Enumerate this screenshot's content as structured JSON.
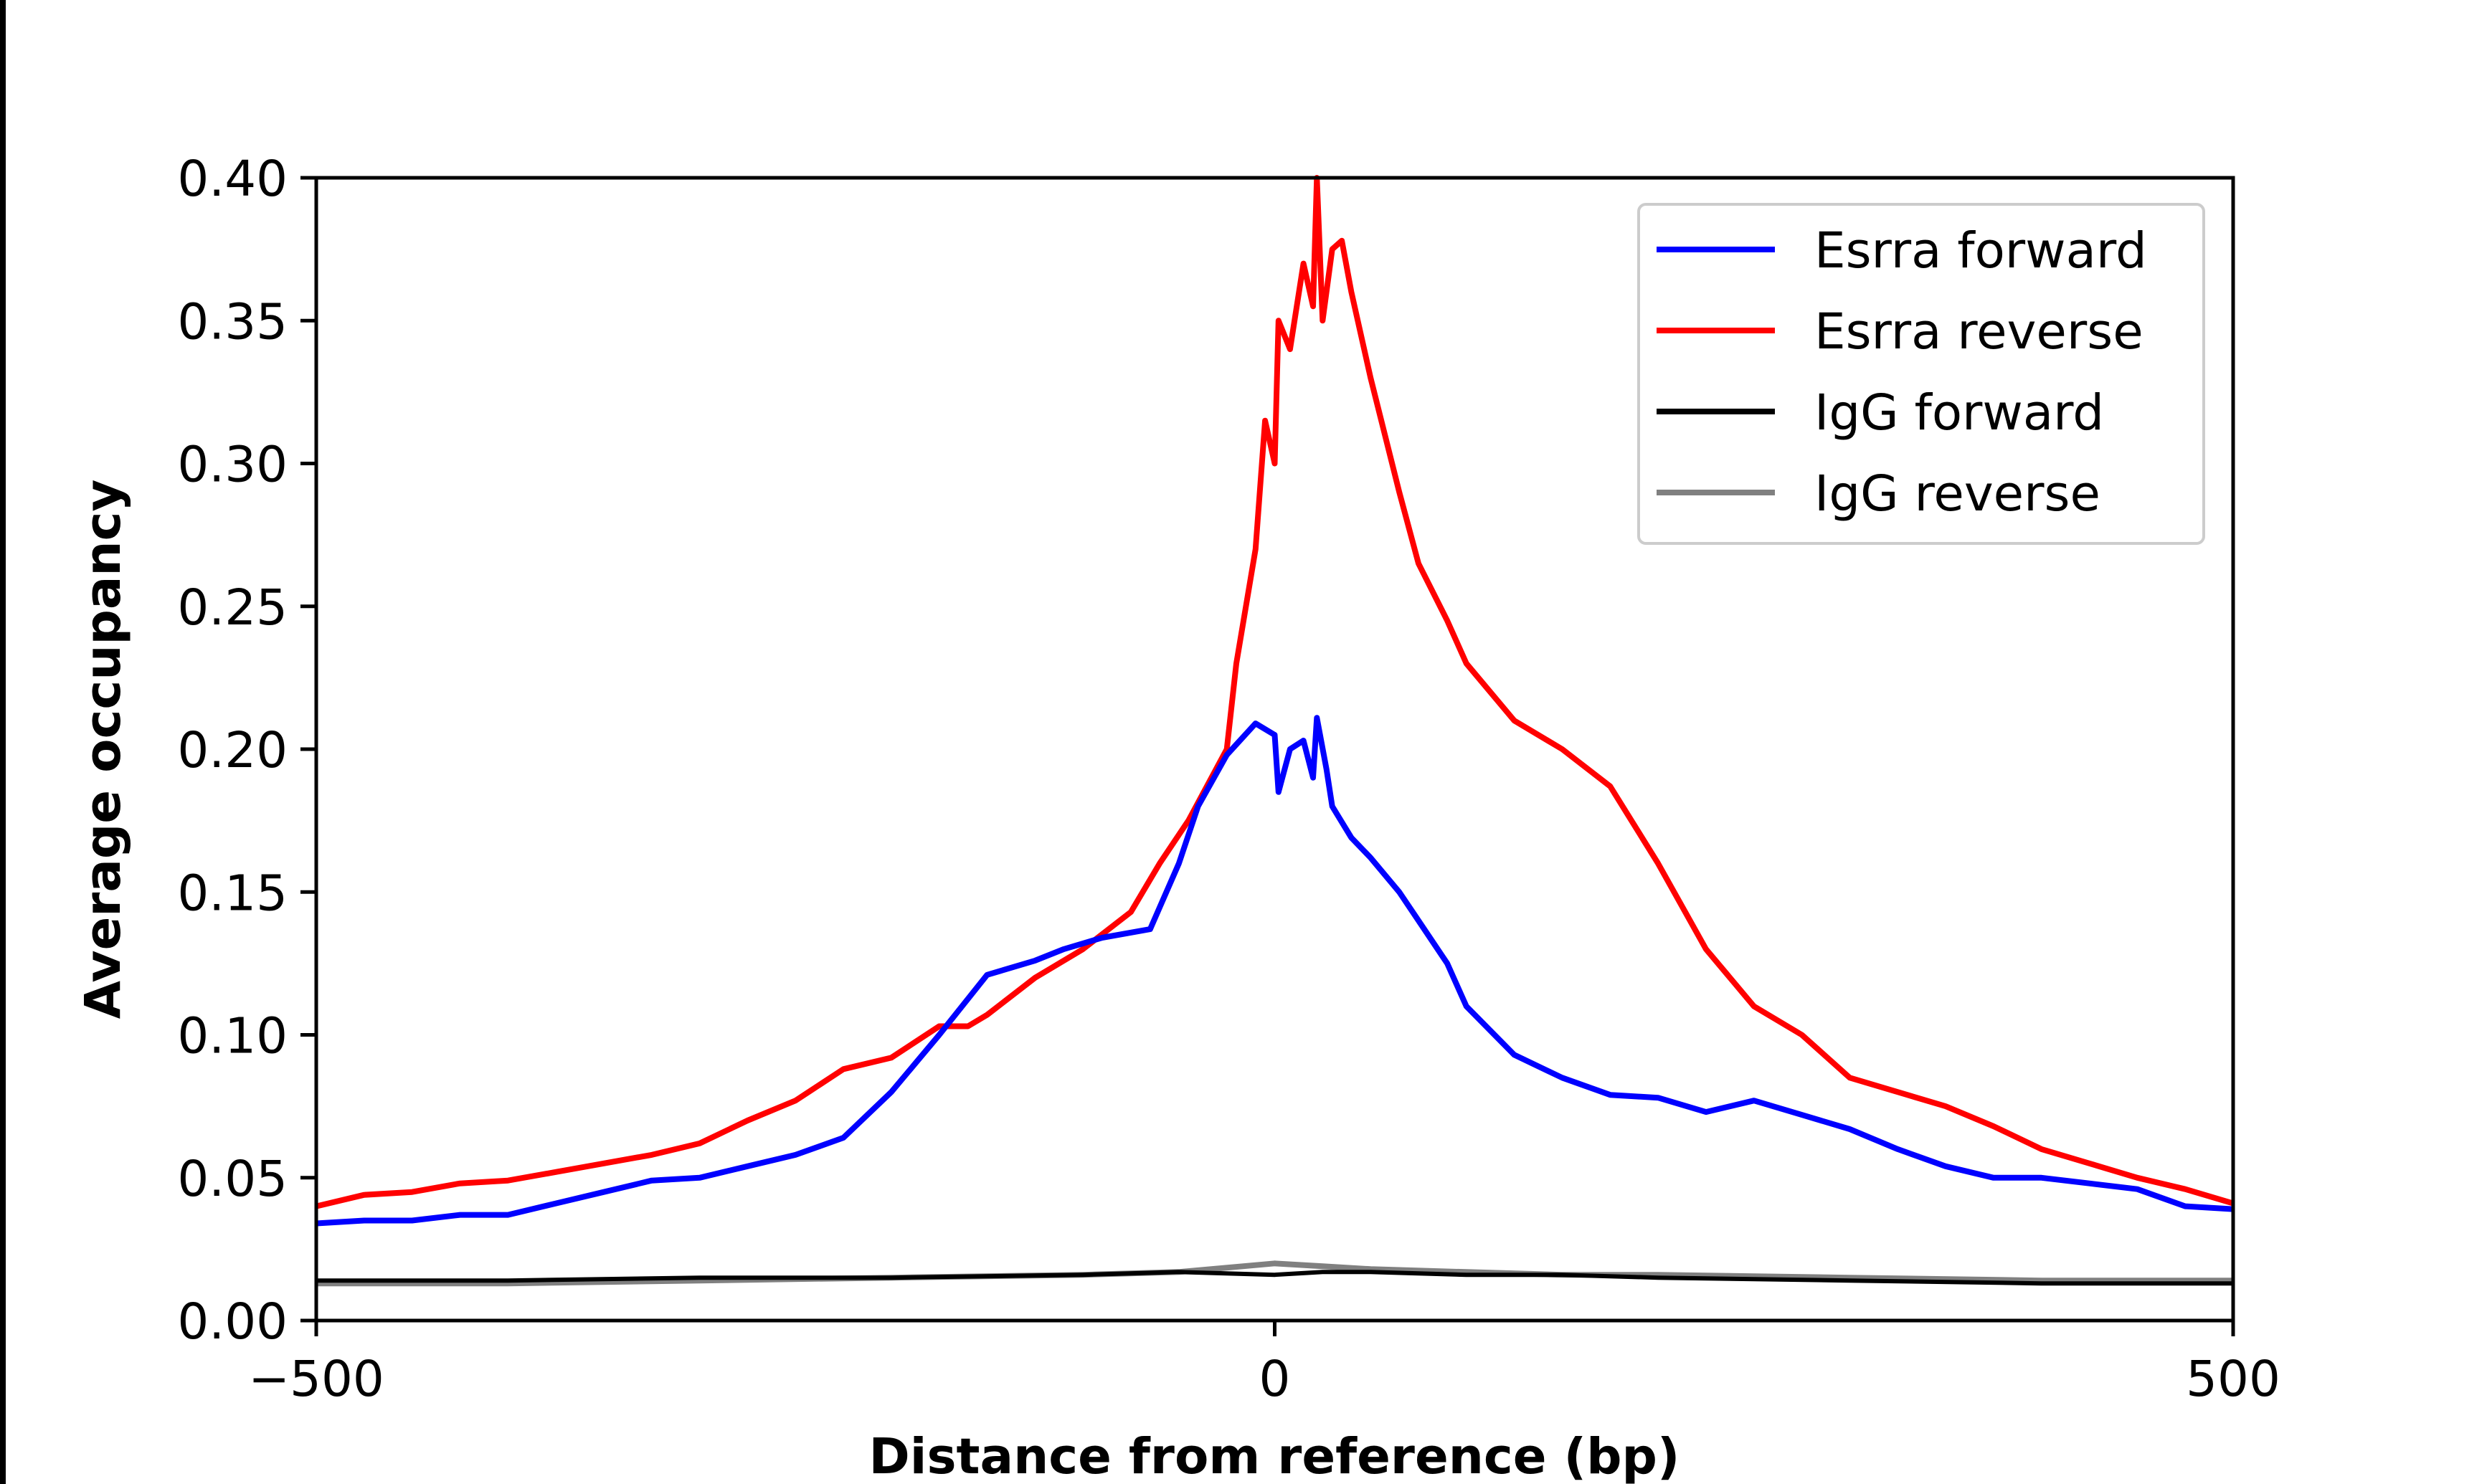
{
  "chart_data": {
    "type": "line",
    "title": "",
    "xlabel": "Distance from reference (bp)",
    "ylabel": "Average occupancy",
    "xlim": [
      -500,
      500
    ],
    "ylim": [
      0,
      0.4
    ],
    "xticks": [
      -500,
      0,
      500
    ],
    "xtick_labels": [
      "−500",
      "0",
      "500"
    ],
    "yticks": [
      0,
      0.05,
      0.1,
      0.15,
      0.2,
      0.25,
      0.3,
      0.35,
      0.4
    ],
    "ytick_labels": [
      "0.00",
      "0.05",
      "0.10",
      "0.15",
      "0.20",
      "0.25",
      "0.30",
      "0.35",
      "0.40"
    ],
    "grid": false,
    "legend_position": "top-right",
    "series": [
      {
        "name": "Esrra forward",
        "color": "#0000ff",
        "points": [
          [
            -500,
            0.034
          ],
          [
            -475,
            0.035
          ],
          [
            -450,
            0.035
          ],
          [
            -425,
            0.037
          ],
          [
            -400,
            0.037
          ],
          [
            -375,
            0.041
          ],
          [
            -350,
            0.045
          ],
          [
            -325,
            0.049
          ],
          [
            -300,
            0.05
          ],
          [
            -275,
            0.054
          ],
          [
            -250,
            0.058
          ],
          [
            -225,
            0.064
          ],
          [
            -200,
            0.08
          ],
          [
            -175,
            0.1
          ],
          [
            -150,
            0.121
          ],
          [
            -125,
            0.126
          ],
          [
            -110,
            0.13
          ],
          [
            -90,
            0.134
          ],
          [
            -65,
            0.137
          ],
          [
            -50,
            0.16
          ],
          [
            -40,
            0.18
          ],
          [
            -25,
            0.198
          ],
          [
            -10,
            0.209
          ],
          [
            0,
            0.205
          ],
          [
            2,
            0.185
          ],
          [
            8,
            0.2
          ],
          [
            15,
            0.203
          ],
          [
            20,
            0.19
          ],
          [
            22,
            0.211
          ],
          [
            27,
            0.193
          ],
          [
            30,
            0.18
          ],
          [
            40,
            0.169
          ],
          [
            50,
            0.162
          ],
          [
            65,
            0.15
          ],
          [
            75,
            0.14
          ],
          [
            90,
            0.125
          ],
          [
            100,
            0.11
          ],
          [
            125,
            0.093
          ],
          [
            150,
            0.085
          ],
          [
            175,
            0.079
          ],
          [
            200,
            0.078
          ],
          [
            225,
            0.073
          ],
          [
            250,
            0.077
          ],
          [
            275,
            0.072
          ],
          [
            300,
            0.067
          ],
          [
            325,
            0.06
          ],
          [
            350,
            0.054
          ],
          [
            375,
            0.05
          ],
          [
            400,
            0.05
          ],
          [
            425,
            0.048
          ],
          [
            450,
            0.046
          ],
          [
            475,
            0.04
          ],
          [
            500,
            0.039
          ]
        ]
      },
      {
        "name": "Esrra reverse",
        "color": "#ff0000",
        "points": [
          [
            -500,
            0.04
          ],
          [
            -475,
            0.044
          ],
          [
            -450,
            0.045
          ],
          [
            -425,
            0.048
          ],
          [
            -400,
            0.049
          ],
          [
            -375,
            0.052
          ],
          [
            -350,
            0.055
          ],
          [
            -325,
            0.058
          ],
          [
            -300,
            0.062
          ],
          [
            -275,
            0.07
          ],
          [
            -250,
            0.077
          ],
          [
            -225,
            0.088
          ],
          [
            -200,
            0.092
          ],
          [
            -175,
            0.103
          ],
          [
            -160,
            0.103
          ],
          [
            -150,
            0.107
          ],
          [
            -125,
            0.12
          ],
          [
            -100,
            0.13
          ],
          [
            -75,
            0.143
          ],
          [
            -60,
            0.16
          ],
          [
            -45,
            0.175
          ],
          [
            -25,
            0.2
          ],
          [
            -20,
            0.23
          ],
          [
            -10,
            0.27
          ],
          [
            -5,
            0.315
          ],
          [
            0,
            0.3
          ],
          [
            2,
            0.35
          ],
          [
            8,
            0.34
          ],
          [
            15,
            0.37
          ],
          [
            20,
            0.355
          ],
          [
            22,
            0.4
          ],
          [
            25,
            0.35
          ],
          [
            30,
            0.375
          ],
          [
            35,
            0.378
          ],
          [
            40,
            0.36
          ],
          [
            50,
            0.33
          ],
          [
            65,
            0.29
          ],
          [
            75,
            0.265
          ],
          [
            90,
            0.245
          ],
          [
            100,
            0.23
          ],
          [
            125,
            0.21
          ],
          [
            150,
            0.2
          ],
          [
            175,
            0.187
          ],
          [
            200,
            0.16
          ],
          [
            225,
            0.13
          ],
          [
            250,
            0.11
          ],
          [
            275,
            0.1
          ],
          [
            300,
            0.085
          ],
          [
            325,
            0.08
          ],
          [
            350,
            0.075
          ],
          [
            375,
            0.068
          ],
          [
            400,
            0.06
          ],
          [
            425,
            0.055
          ],
          [
            450,
            0.05
          ],
          [
            475,
            0.046
          ],
          [
            500,
            0.041
          ]
        ]
      },
      {
        "name": "IgG forward",
        "color": "#000000",
        "points": [
          [
            -500,
            0.014
          ],
          [
            -400,
            0.014
          ],
          [
            -300,
            0.015
          ],
          [
            -200,
            0.015
          ],
          [
            -100,
            0.016
          ],
          [
            -50,
            0.017
          ],
          [
            0,
            0.016
          ],
          [
            25,
            0.017
          ],
          [
            50,
            0.017
          ],
          [
            100,
            0.016
          ],
          [
            150,
            0.016
          ],
          [
            200,
            0.015
          ],
          [
            300,
            0.014
          ],
          [
            400,
            0.013
          ],
          [
            500,
            0.013
          ]
        ]
      },
      {
        "name": "IgG reverse",
        "color": "#808080",
        "points": [
          [
            -500,
            0.013
          ],
          [
            -400,
            0.013
          ],
          [
            -300,
            0.014
          ],
          [
            -200,
            0.015
          ],
          [
            -100,
            0.016
          ],
          [
            -50,
            0.017
          ],
          [
            0,
            0.02
          ],
          [
            25,
            0.019
          ],
          [
            50,
            0.018
          ],
          [
            100,
            0.017
          ],
          [
            150,
            0.016
          ],
          [
            200,
            0.016
          ],
          [
            300,
            0.015
          ],
          [
            400,
            0.014
          ],
          [
            500,
            0.014
          ]
        ]
      }
    ]
  }
}
